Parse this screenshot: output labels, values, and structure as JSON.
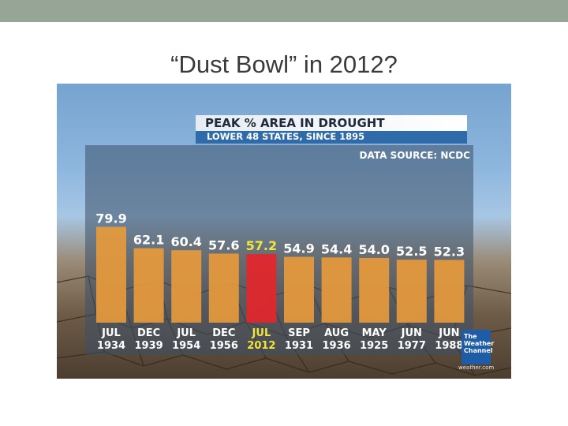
{
  "slide": {
    "title": "“Dust Bowl” in 2012?"
  },
  "graphic": {
    "header_title": "PEAK % AREA IN DROUGHT",
    "header_subtitle": "LOWER 48 STATES, SINCE 1895",
    "source_label": "DATA SOURCE: NCDC",
    "logo_text": "The Weather Channel",
    "logo_site": "weather.com"
  },
  "chart_data": {
    "type": "bar",
    "title": "PEAK % AREA IN DROUGHT",
    "subtitle": "LOWER 48 STATES, SINCE 1895",
    "source": "DATA SOURCE: NCDC",
    "categories": [
      {
        "month": "JUL",
        "year": "1934"
      },
      {
        "month": "DEC",
        "year": "1939"
      },
      {
        "month": "JUL",
        "year": "1954"
      },
      {
        "month": "DEC",
        "year": "1956"
      },
      {
        "month": "JUL",
        "year": "2012"
      },
      {
        "month": "SEP",
        "year": "1931"
      },
      {
        "month": "AUG",
        "year": "1936"
      },
      {
        "month": "MAY",
        "year": "1925"
      },
      {
        "month": "JUN",
        "year": "1977"
      },
      {
        "month": "JUN",
        "year": "1988"
      }
    ],
    "values": [
      79.9,
      62.1,
      60.4,
      57.6,
      57.2,
      54.9,
      54.4,
      54.0,
      52.5,
      52.3
    ],
    "value_labels": [
      "79.9",
      "62.1",
      "60.4",
      "57.6",
      "57.2",
      "54.9",
      "54.4",
      "54.0",
      "52.5",
      "52.3"
    ],
    "highlight_index": 4,
    "ylim": [
      0,
      100
    ],
    "grid": false,
    "colors": {
      "bar": "#e79a3c",
      "highlight_bar": "#e3262b",
      "label": "#ffffff",
      "highlight_label": "#f2e63a"
    }
  }
}
